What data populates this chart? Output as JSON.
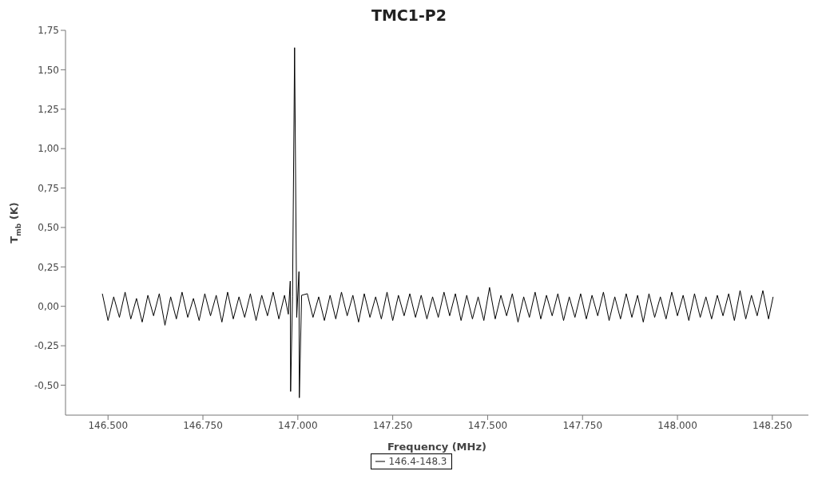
{
  "chart_data": {
    "type": "line",
    "title": "TMC1-P2",
    "xlabel": "Frequency (MHz)",
    "ylabel": "T$_{mb}$ (K)",
    "xlim": [
      146388,
      148345
    ],
    "ylim": [
      -0.69,
      1.75
    ],
    "xticks": [
      {
        "value": 146500,
        "label": "146.500"
      },
      {
        "value": 146750,
        "label": "146.750"
      },
      {
        "value": 147000,
        "label": "147.000"
      },
      {
        "value": 147250,
        "label": "147.250"
      },
      {
        "value": 147500,
        "label": "147.500"
      },
      {
        "value": 147750,
        "label": "147.750"
      },
      {
        "value": 148000,
        "label": "148.000"
      },
      {
        "value": 148250,
        "label": "148.250"
      }
    ],
    "yticks": [
      {
        "value": -0.5,
        "label": "-0,50"
      },
      {
        "value": -0.25,
        "label": "-0,25"
      },
      {
        "value": 0,
        "label": "0,00"
      },
      {
        "value": 0.25,
        "label": "0,25"
      },
      {
        "value": 0.5,
        "label": "0,50"
      },
      {
        "value": 0.75,
        "label": "0,75"
      },
      {
        "value": 1,
        "label": "1,00"
      },
      {
        "value": 1.25,
        "label": "1,25"
      },
      {
        "value": 1.5,
        "label": "1,50"
      },
      {
        "value": 1.75,
        "label": "1,75"
      }
    ],
    "grid": false,
    "legend": "bottom",
    "marker": "none",
    "line_style": "solid",
    "series": [
      {
        "name": "146.4-148.3",
        "color": "#000000",
        "x": [
          146485,
          146500,
          146515,
          146530,
          146545,
          146560,
          146575,
          146590,
          146605,
          146620,
          146635,
          146650,
          146665,
          146680,
          146695,
          146710,
          146725,
          146740,
          146755,
          146770,
          146785,
          146800,
          146815,
          146830,
          146845,
          146860,
          146875,
          146890,
          146905,
          146920,
          146935,
          146950,
          146965,
          146975,
          146980,
          146981,
          146986,
          146991.5,
          146997,
          147003,
          147004,
          147010,
          147025,
          147040,
          147055,
          147070,
          147085,
          147100,
          147115,
          147130,
          147145,
          147160,
          147175,
          147190,
          147205,
          147220,
          147235,
          147250,
          147265,
          147280,
          147295,
          147310,
          147325,
          147340,
          147355,
          147370,
          147385,
          147400,
          147415,
          147430,
          147445,
          147460,
          147475,
          147490,
          147505,
          147520,
          147535,
          147550,
          147565,
          147580,
          147595,
          147610,
          147625,
          147640,
          147655,
          147670,
          147685,
          147700,
          147715,
          147730,
          147745,
          147760,
          147775,
          147790,
          147805,
          147820,
          147835,
          147850,
          147865,
          147880,
          147895,
          147910,
          147925,
          147940,
          147955,
          147970,
          147985,
          148000,
          148015,
          148030,
          148045,
          148060,
          148075,
          148090,
          148105,
          148120,
          148135,
          148150,
          148165,
          148180,
          148195,
          148210,
          148225,
          148240,
          148252
        ],
        "values": [
          0.08,
          -0.09,
          0.06,
          -0.07,
          0.09,
          -0.08,
          0.05,
          -0.1,
          0.07,
          -0.06,
          0.08,
          -0.12,
          0.06,
          -0.08,
          0.09,
          -0.07,
          0.05,
          -0.09,
          0.08,
          -0.06,
          0.07,
          -0.1,
          0.09,
          -0.08,
          0.06,
          -0.07,
          0.08,
          -0.09,
          0.07,
          -0.06,
          0.09,
          -0.08,
          0.07,
          -0.05,
          0.16,
          -0.54,
          0.06,
          1.64,
          -0.07,
          0.22,
          -0.58,
          0.07,
          0.08,
          -0.07,
          0.06,
          -0.09,
          0.07,
          -0.08,
          0.09,
          -0.06,
          0.07,
          -0.1,
          0.08,
          -0.07,
          0.06,
          -0.08,
          0.09,
          -0.09,
          0.07,
          -0.06,
          0.08,
          -0.07,
          0.07,
          -0.08,
          0.06,
          -0.07,
          0.09,
          -0.06,
          0.08,
          -0.09,
          0.07,
          -0.08,
          0.06,
          -0.09,
          0.12,
          -0.08,
          0.07,
          -0.06,
          0.08,
          -0.1,
          0.06,
          -0.07,
          0.09,
          -0.08,
          0.07,
          -0.06,
          0.08,
          -0.09,
          0.06,
          -0.07,
          0.08,
          -0.08,
          0.07,
          -0.06,
          0.09,
          -0.09,
          0.06,
          -0.08,
          0.08,
          -0.07,
          0.07,
          -0.1,
          0.08,
          -0.07,
          0.06,
          -0.08,
          0.09,
          -0.06,
          0.07,
          -0.09,
          0.08,
          -0.07,
          0.06,
          -0.08,
          0.07,
          -0.06,
          0.08,
          -0.09,
          0.1,
          -0.08,
          0.07,
          -0.06,
          0.1,
          -0.08,
          0.06
        ]
      }
    ]
  }
}
